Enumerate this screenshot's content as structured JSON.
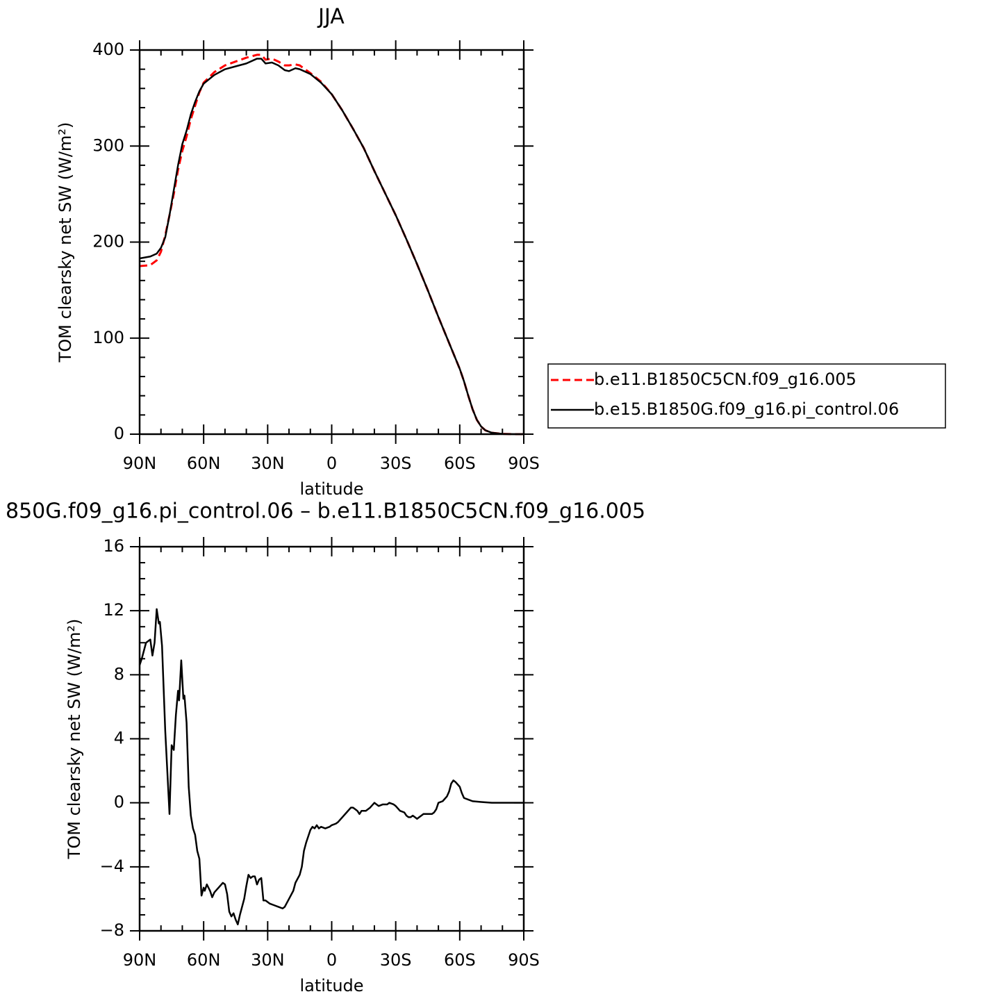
{
  "chart_data": [
    {
      "type": "line",
      "title": "JJA",
      "xlabel": "latitude",
      "ylabel": "TOM clearsky net SW (W/m²)",
      "xlim": [
        90,
        -90
      ],
      "xticks": [
        {
          "value": 90,
          "label": "90N"
        },
        {
          "value": 60,
          "label": "60N"
        },
        {
          "value": 30,
          "label": "30N"
        },
        0,
        {
          "value": -30,
          "label": "30S"
        },
        {
          "value": -60,
          "label": "60S"
        },
        {
          "value": -90,
          "label": "90S"
        }
      ],
      "minor_xticks": [
        80,
        70,
        50,
        40,
        20,
        10,
        -10,
        -20,
        -40,
        -50,
        -70,
        -80
      ],
      "ylim": [
        0,
        400
      ],
      "yticks": [
        0,
        100,
        200,
        300,
        400
      ],
      "minor_yticks": [
        20,
        40,
        60,
        80,
        120,
        140,
        160,
        180,
        220,
        240,
        260,
        280,
        320,
        340,
        360,
        380
      ],
      "legend": "right",
      "x": [
        90,
        85,
        82,
        80,
        78,
        76,
        74,
        72,
        70,
        68,
        66,
        64,
        62,
        60,
        55,
        50,
        45,
        40,
        35,
        33,
        31,
        28,
        25,
        22,
        20,
        17,
        15,
        10,
        5,
        0,
        -5,
        -10,
        -15,
        -20,
        -25,
        -30,
        -35,
        -40,
        -45,
        -50,
        -55,
        -60,
        -62,
        -64,
        -66,
        -68,
        -70,
        -72,
        -75,
        -80,
        -85,
        -90
      ],
      "series": [
        {
          "name": "b.e11.B1850C5CN.f09_g16.005",
          "color": "#ff0000",
          "linestyle": "dashed",
          "values": [
            175,
            176,
            181,
            190,
            207,
            228,
            250,
            275,
            295,
            310,
            328,
            342,
            356,
            366,
            377,
            384,
            388,
            392,
            395,
            395,
            390,
            391,
            388,
            384,
            384,
            385,
            384,
            376,
            367,
            354,
            337,
            318,
            298,
            274,
            251,
            228,
            203,
            177,
            150,
            122,
            95,
            68,
            55,
            40,
            26,
            15,
            8,
            4,
            1.5,
            0.3,
            0,
            0
          ]
        },
        {
          "name": "b.e15.B1850G.f09_g16.pi_control.06",
          "color": "#000000",
          "linestyle": "solid",
          "values": [
            183,
            185,
            188,
            194,
            205,
            228,
            254,
            280,
            302,
            316,
            333,
            346,
            357,
            365,
            374,
            380,
            383,
            386,
            391,
            391,
            386,
            387,
            384,
            379,
            378,
            381,
            380,
            375,
            366,
            354,
            337,
            318,
            298,
            274,
            251,
            228,
            203,
            177,
            150,
            122,
            95,
            68,
            55,
            40,
            26,
            15,
            8,
            4,
            1.5,
            0.3,
            0,
            0
          ]
        }
      ]
    },
    {
      "type": "line",
      "title": "850G.f09_g16.pi_control.06 – b.e11.B1850C5CN.f09_g16.005",
      "xlabel": "latitude",
      "ylabel": "TOM clearsky net SW (W/m²)",
      "xlim": [
        90,
        -90
      ],
      "xticks": [
        {
          "value": 90,
          "label": "90N"
        },
        {
          "value": 60,
          "label": "60N"
        },
        {
          "value": 30,
          "label": "30N"
        },
        0,
        {
          "value": -30,
          "label": "30S"
        },
        {
          "value": -60,
          "label": "60S"
        },
        {
          "value": -90,
          "label": "90S"
        }
      ],
      "minor_xticks": [
        80,
        70,
        50,
        40,
        20,
        10,
        -10,
        -20,
        -40,
        -50,
        -70,
        -80
      ],
      "ylim": [
        -8,
        16
      ],
      "yticks": [
        {
          "value": -8,
          "label": "−8"
        },
        {
          "value": -4,
          "label": "−4"
        },
        0,
        4,
        8,
        12,
        16
      ],
      "minor_yticks": [
        -7,
        -6,
        -5,
        -3,
        -2,
        -1,
        1,
        2,
        3,
        5,
        6,
        7,
        9,
        10,
        11,
        13,
        14,
        15
      ],
      "x": [
        90,
        89,
        87,
        85,
        84,
        83,
        82,
        81,
        80.5,
        79.5,
        78,
        76,
        75,
        74,
        73,
        72,
        71.5,
        70.5,
        69.5,
        69,
        68,
        67,
        66,
        65,
        64,
        63,
        62,
        61,
        60,
        59.5,
        58.5,
        57,
        56,
        55,
        53,
        51,
        50,
        49,
        48,
        47,
        46,
        45,
        44,
        43,
        41,
        40,
        39,
        38,
        37,
        36,
        35,
        34,
        33,
        32,
        31,
        29,
        27,
        25,
        23,
        22,
        20,
        18,
        17,
        15,
        14,
        13,
        12,
        10,
        9,
        8,
        7,
        6,
        5,
        3,
        1,
        0,
        -2,
        -3,
        -5,
        -7,
        -9,
        -10,
        -11,
        -12,
        -13,
        -14,
        -16,
        -18,
        -20,
        -21,
        -22,
        -24,
        -26,
        -27,
        -29,
        -30,
        -32,
        -34,
        -35,
        -36,
        -37,
        -38,
        -39,
        -40,
        -41,
        -42,
        -43,
        -45,
        -47,
        -48,
        -49,
        -50,
        -52,
        -54,
        -55,
        -56,
        -57,
        -58,
        -60,
        -61,
        -62,
        -64,
        -66,
        -70,
        -75,
        -90
      ],
      "series": [
        {
          "color": "#000000",
          "linestyle": "solid",
          "values": [
            8.6,
            9,
            10,
            10.2,
            9.2,
            10,
            12.1,
            11.2,
            11.3,
            9.8,
            4.5,
            -0.7,
            3.6,
            3.3,
            5.5,
            7,
            6.4,
            8.9,
            6.5,
            6.7,
            5,
            1,
            -0.8,
            -1.6,
            -2,
            -3,
            -3.5,
            -5.8,
            -5.3,
            -5.5,
            -5.1,
            -5.5,
            -5.9,
            -5.6,
            -5.3,
            -5,
            -5.1,
            -5.7,
            -6.8,
            -7.1,
            -6.9,
            -7.3,
            -7.6,
            -7,
            -6,
            -5.2,
            -4.5,
            -4.7,
            -4.6,
            -4.6,
            -5.1,
            -4.8,
            -4.7,
            -6.1,
            -6.1,
            -6.3,
            -6.4,
            -6.5,
            -6.6,
            -6.5,
            -6,
            -5.5,
            -5,
            -4.5,
            -4,
            -3,
            -2.5,
            -1.7,
            -1.5,
            -1.6,
            -1.4,
            -1.6,
            -1.5,
            -1.6,
            -1.5,
            -1.4,
            -1.3,
            -1.2,
            -0.9,
            -0.6,
            -0.3,
            -0.3,
            -0.4,
            -0.5,
            -0.7,
            -0.5,
            -0.5,
            -0.3,
            0,
            -0.1,
            -0.2,
            -0.1,
            -0.1,
            0,
            -0.1,
            -0.2,
            -0.5,
            -0.6,
            -0.8,
            -0.9,
            -0.9,
            -0.8,
            -0.9,
            -1,
            -0.9,
            -0.8,
            -0.7,
            -0.7,
            -0.7,
            -0.6,
            -0.4,
            0,
            0.1,
            0.4,
            0.7,
            1.2,
            1.4,
            1.3,
            1,
            0.6,
            0.3,
            0.2,
            0.1,
            0.05,
            0,
            0
          ]
        }
      ]
    }
  ]
}
